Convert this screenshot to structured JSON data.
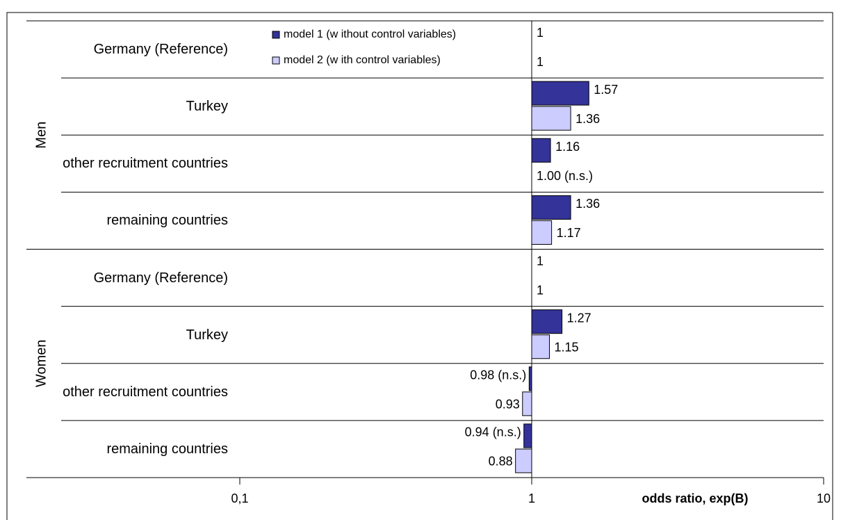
{
  "chart_data": {
    "type": "barh",
    "xlabel": "odds ratio, exp(B)",
    "groups": [
      {
        "name": "Men",
        "categories": [
          "Germany (Reference)",
          "Turkey",
          "other recruitment countries",
          "remaining countries"
        ]
      },
      {
        "name": "Women",
        "categories": [
          "Germany (Reference)",
          "Turkey",
          "other recruitment countries",
          "remaining countries"
        ]
      }
    ],
    "series": [
      {
        "name": "model 1 (w ithout control variables)",
        "color": "#333399",
        "values": [
          1,
          1.57,
          1.16,
          1.36,
          1,
          1.27,
          0.98,
          0.94
        ],
        "value_labels": [
          "1",
          "1.57",
          "1.16",
          "1.36",
          "1",
          "1.27",
          "0.98 (n.s.)",
          "0.94 (n.s.)"
        ]
      },
      {
        "name": "model 2 (w ith control variables)",
        "color": "#ccccff",
        "values": [
          1,
          1.36,
          1.0,
          1.17,
          1,
          1.15,
          0.93,
          0.88
        ],
        "value_labels": [
          "1",
          "1.36",
          "1.00 (n.s.)",
          "1.17",
          "1",
          "1.15",
          "0.93",
          "0.88"
        ]
      }
    ],
    "xscale": "log",
    "xlim": [
      0.1,
      10
    ],
    "xticks": [
      {
        "value": 0.1,
        "label": "0,1"
      },
      1,
      10
    ]
  }
}
